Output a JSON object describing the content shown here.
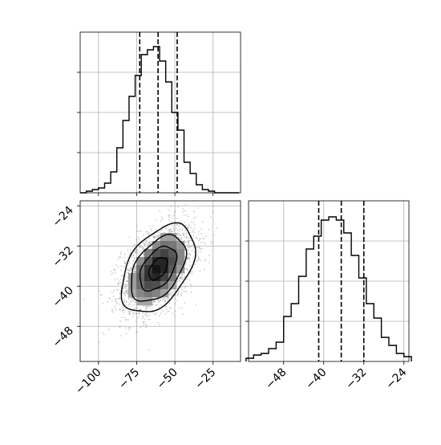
{
  "chart_data": [
    {
      "type": "histogram",
      "panel": "marginal-x",
      "xlim": [
        -112,
        -7
      ],
      "ylim": [
        0,
        1.0
      ],
      "bins": [
        -112,
        -108,
        -104,
        -100,
        -96,
        -92,
        -88,
        -84,
        -80,
        -76,
        -72,
        -68,
        -64,
        -60,
        -56,
        -52,
        -48,
        -44,
        -40,
        -36,
        -32,
        -28,
        -24,
        -20,
        -16,
        -12,
        -8
      ],
      "counts": [
        0.0,
        0.01,
        0.02,
        0.03,
        0.06,
        0.13,
        0.28,
        0.45,
        0.6,
        0.73,
        0.86,
        0.89,
        0.91,
        0.82,
        0.69,
        0.5,
        0.39,
        0.19,
        0.12,
        0.05,
        0.02,
        0.01,
        0,
        0,
        0,
        0
      ],
      "quantiles": [
        -73,
        -61,
        -48.5
      ],
      "x_ticks": [
        -100,
        -75,
        -50,
        -25
      ],
      "y_grid": [
        0.25,
        0.5,
        0.75
      ]
    },
    {
      "type": "density-contour",
      "panel": "joint",
      "xlim": [
        -112,
        -7
      ],
      "ylim": [
        -55,
        -23
      ],
      "center": [
        -61,
        -36.5
      ],
      "sigma": [
        12,
        4.4
      ],
      "corr": 0.45,
      "n_points": 2600,
      "contour_levels": [
        0.118,
        0.393,
        0.675,
        0.865
      ],
      "x_ticks": [
        -100,
        -75,
        -50,
        -25
      ],
      "y_ticks": [
        -24,
        -32,
        -40,
        -48
      ],
      "x_tick_labels": [
        "−100",
        "−75",
        "−50",
        "−25"
      ],
      "y_tick_labels": [
        "−24",
        "−32",
        "−40",
        "−48"
      ]
    },
    {
      "type": "histogram",
      "panel": "marginal-y",
      "xlim": [
        -55,
        -23
      ],
      "ylim": [
        0,
        1.0
      ],
      "bins": [
        -55.5,
        -54,
        -52.5,
        -51,
        -49.5,
        -48,
        -46.5,
        -45,
        -43.5,
        -42,
        -40.5,
        -39,
        -37.5,
        -36,
        -34.5,
        -33,
        -31.5,
        -30,
        -28.5,
        -27,
        -25.5,
        -24,
        -22.5
      ],
      "counts": [
        0.02,
        0.04,
        0.05,
        0.08,
        0.12,
        0.28,
        0.36,
        0.53,
        0.7,
        0.78,
        0.88,
        0.9,
        0.88,
        0.8,
        0.66,
        0.52,
        0.36,
        0.27,
        0.15,
        0.1,
        0.05,
        0.03
      ],
      "quantiles": [
        -41,
        -36.5,
        -32
      ],
      "x_ticks": [
        -48,
        -40,
        -32,
        -24
      ],
      "x_tick_labels": [
        "−48",
        "−40",
        "−32",
        "−24"
      ],
      "y_grid": [
        0.25,
        0.5,
        0.75
      ]
    }
  ]
}
